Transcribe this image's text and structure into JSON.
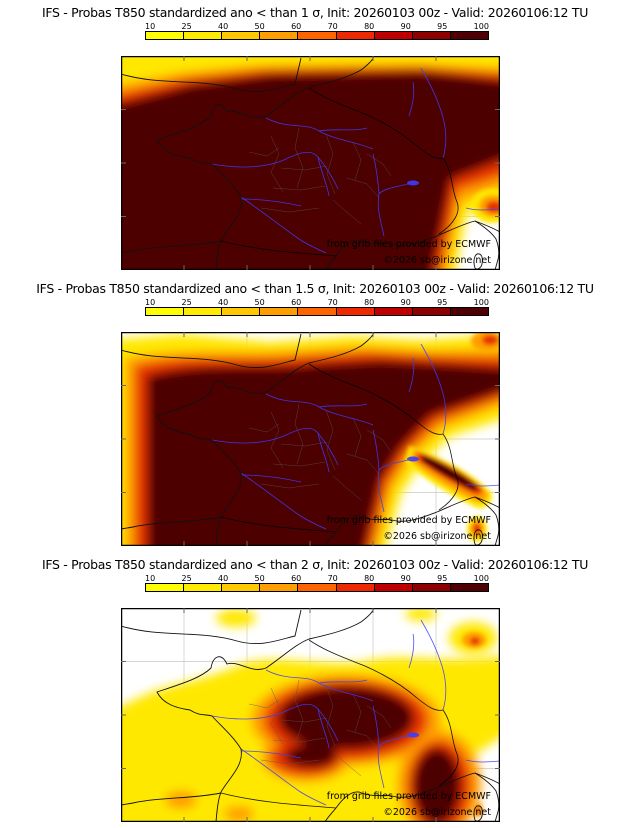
{
  "colorbar": {
    "ticks": [
      "10",
      "25",
      "40",
      "50",
      "60",
      "70",
      "80",
      "90",
      "95",
      "100"
    ],
    "colors": [
      "#FFFF00",
      "#FFEB00",
      "#FFC800",
      "#FF9E00",
      "#FF6400",
      "#F02800",
      "#C00000",
      "#8C0000",
      "#4E0005"
    ]
  },
  "map_palette": {
    "low": "#FFE800",
    "mid": "#FF9E00",
    "high": "#E63000",
    "extreme": "#4E0005",
    "rivers": "#3C3CFF"
  },
  "panels": [
    {
      "title": "IFS - Probas T850  standardized ano < than 1 σ, Init: 20260103 00z - Valid: 20260106:12 TU",
      "credit": "from grib files provided by ECMWF",
      "copyright": "©2026 sb@irizone.net"
    },
    {
      "title": "IFS - Probas T850  standardized ano < than 1.5 σ, Init: 20260103 00z - Valid: 20260106:12 TU",
      "credit": "from grib files provided by ECMWF",
      "copyright": "©2026 sb@irizone.net"
    },
    {
      "title": "IFS - Probas T850  standardized ano < than 2 σ, Init: 20260103 00z - Valid: 20260106:12 TU",
      "credit": "from grib files provided by ECMWF",
      "copyright": "©2026 sb@irizone.net"
    }
  ]
}
